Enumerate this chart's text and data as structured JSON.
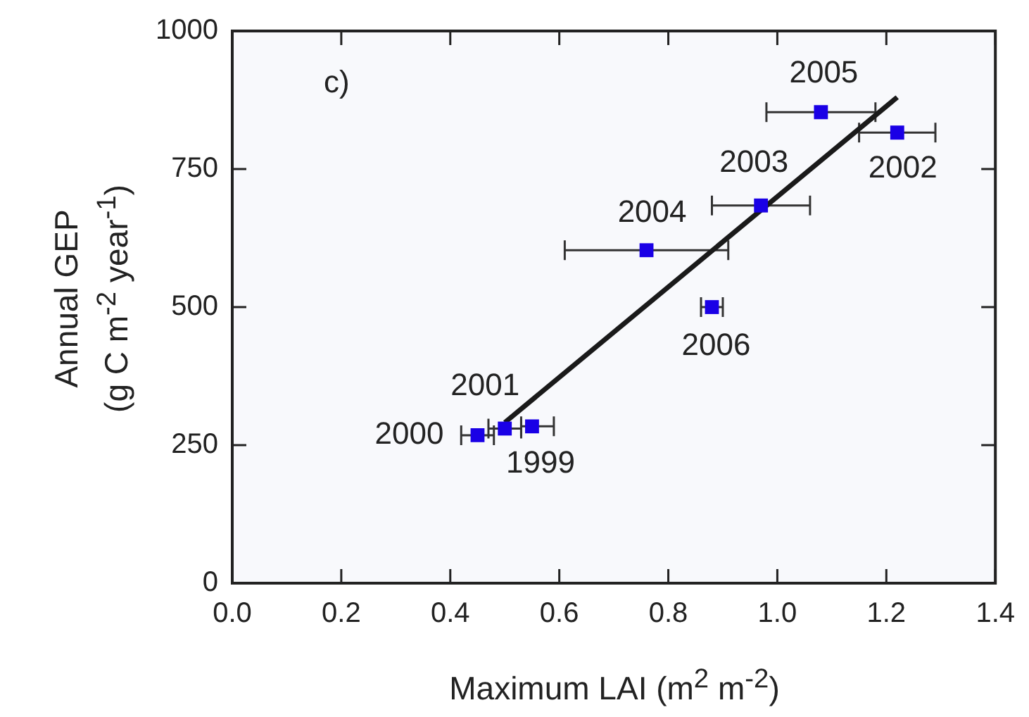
{
  "chart_data": {
    "type": "scatter",
    "xlabel": "Maximum LAI (m$^{2}$ m$^{-2}$)",
    "ylabel": "Annual GEP\n(g C m$^{-2}$ year$^{-1}$)",
    "xlim": [
      0,
      1.4
    ],
    "xticks": [
      {
        "value": 0,
        "label": "0.0"
      },
      0.2,
      0.4,
      0.6,
      0.8,
      {
        "value": 1,
        "label": "1.0"
      },
      1.2,
      1.4
    ],
    "ylim": [
      0,
      1000
    ],
    "yticks": [
      0,
      250,
      500,
      750,
      1000
    ],
    "legend": false,
    "series": [
      {
        "marker": "square",
        "color": "#1a00e6",
        "x": [
          0.55,
          0.45,
          0.5,
          1.22,
          0.97,
          0.76,
          1.08,
          0.88
        ],
        "values": [
          284,
          268,
          280,
          816,
          684,
          603,
          853,
          500
        ],
        "xerrors": [
          [
            0.53,
            0.59
          ],
          [
            0.42,
            0.48
          ],
          [
            0.47,
            0.53
          ],
          [
            1.15,
            1.29
          ],
          [
            0.88,
            1.06
          ],
          [
            0.61,
            0.91
          ],
          [
            0.98,
            1.18
          ],
          [
            0.86,
            0.9
          ]
        ]
      },
      {
        "type": "line",
        "marker": "none",
        "color": "#1a1a1a",
        "x": [
          0.5,
          1.22
        ],
        "values": [
          291,
          880
        ]
      }
    ],
    "annotations": [
      "c)",
      {
        "text": "1999",
        "x": 0.55,
        "y": 284
      },
      {
        "text": "2000",
        "x": 0.45,
        "y": 268
      },
      {
        "text": "2001",
        "x": 0.5,
        "y": 280
      },
      {
        "text": "2002",
        "x": 1.22,
        "y": 816
      },
      {
        "text": "2003",
        "x": 0.97,
        "y": 684
      },
      {
        "text": "2004",
        "x": 0.76,
        "y": 603
      },
      {
        "text": "2005",
        "x": 1.08,
        "y": 853
      },
      {
        "text": "2006",
        "x": 0.88,
        "y": 500
      }
    ]
  }
}
